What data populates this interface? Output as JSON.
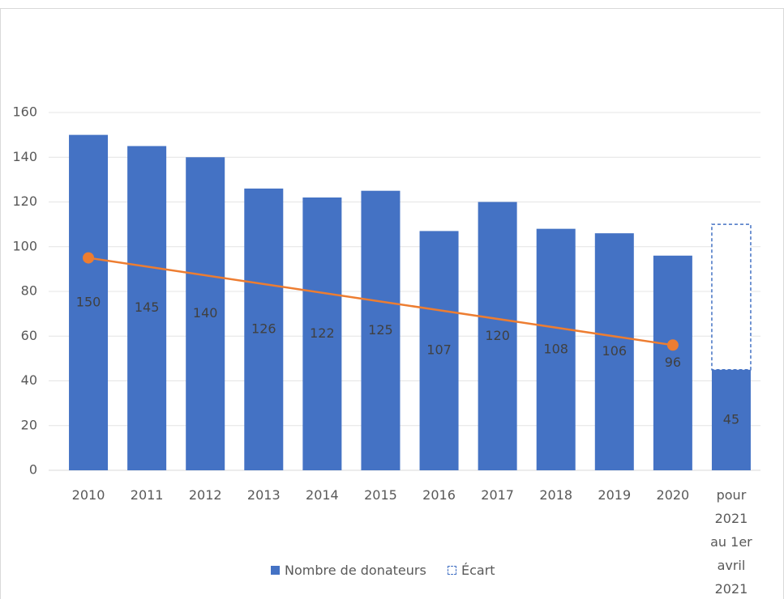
{
  "chart_data": {
    "type": "bar",
    "stacked": true,
    "categories": [
      "2010",
      "2011",
      "2012",
      "2013",
      "2014",
      "2015",
      "2016",
      "2017",
      "2018",
      "2019",
      "2020",
      "pour 2021 au 1er avril 2021"
    ],
    "series": [
      {
        "name": "Nombre de donateurs",
        "color": "#4472c4",
        "fill": "solid",
        "values": [
          150,
          145,
          140,
          126,
          122,
          125,
          107,
          120,
          108,
          106,
          96,
          45
        ]
      },
      {
        "name": "Écart",
        "color": "#4472c4",
        "fill": "dashed",
        "values": [
          null,
          null,
          null,
          null,
          null,
          null,
          null,
          null,
          null,
          null,
          null,
          65
        ]
      }
    ],
    "data_labels_series": 0,
    "trend": {
      "color": "#ed7d31",
      "x": [
        "2010",
        "2020"
      ],
      "values": [
        95,
        56
      ]
    },
    "ylim": [
      0,
      160
    ],
    "yticks": [
      0,
      20,
      40,
      60,
      80,
      100,
      120,
      140,
      160
    ],
    "grid": true,
    "legend": "bottom"
  }
}
